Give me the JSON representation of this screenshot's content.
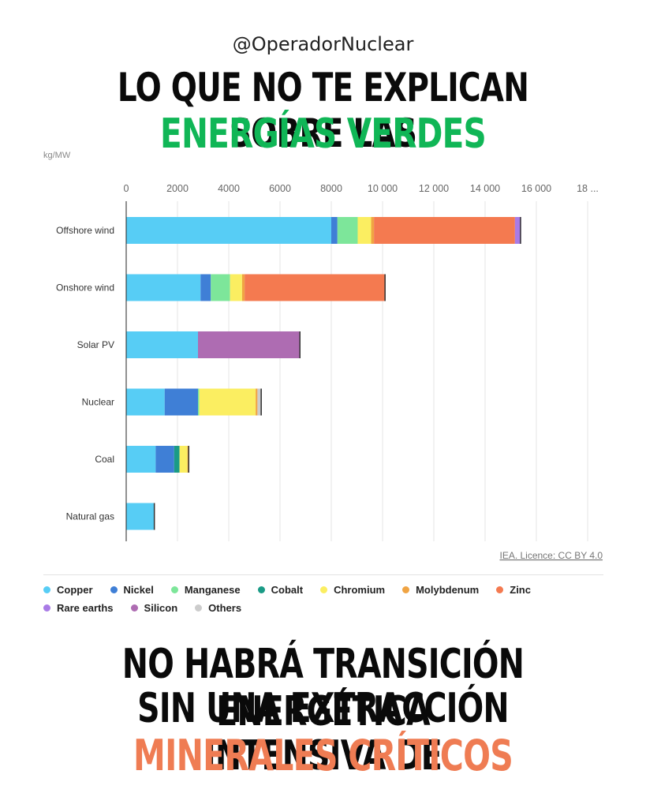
{
  "header": {
    "handle": "@OperadorNuclear",
    "title_line1": "LO QUE NO TE EXPLICAN SOBRE LAS",
    "title_line2": "ENERGÍAS VERDES"
  },
  "footer": {
    "line1": "NO HABRÁ TRANSICIÓN ENERGÉTICA",
    "line2": "SIN UNA EXTRACCIÓN INTENSIVA DE",
    "line3": "MINERALES CRÍTICOS"
  },
  "colors": {
    "headline_green": "#10b656",
    "headline_orange": "#ef7c53"
  },
  "chart_data": {
    "type": "bar",
    "orientation": "horizontal",
    "stacked": true,
    "unit_label": "kg/MW",
    "source": "IEA. Licence: CC BY 4.0",
    "xlim": [
      0,
      18000
    ],
    "x_ticks": [
      "0",
      "2000",
      "4000",
      "6000",
      "8000",
      "10 000",
      "12 000",
      "14 000",
      "16 000",
      "18 ..."
    ],
    "x_tick_values": [
      0,
      2000,
      4000,
      6000,
      8000,
      10000,
      12000,
      14000,
      16000,
      18000
    ],
    "grid": true,
    "legend_position": "bottom",
    "categories": [
      "Offshore wind",
      "Onshore wind",
      "Solar PV",
      "Nuclear",
      "Coal",
      "Natural gas"
    ],
    "series": [
      {
        "name": "Copper",
        "color": "#57cdf5",
        "values": [
          8000,
          2900,
          2800,
          1500,
          1150,
          1100
        ]
      },
      {
        "name": "Nickel",
        "color": "#3f7fd6",
        "values": [
          240,
          400,
          0,
          1300,
          720,
          0
        ]
      },
      {
        "name": "Manganese",
        "color": "#7de69a",
        "values": [
          790,
          750,
          0,
          50,
          0,
          0
        ]
      },
      {
        "name": "Cobalt",
        "color": "#1a9b86",
        "values": [
          0,
          0,
          0,
          0,
          210,
          0
        ]
      },
      {
        "name": "Chromium",
        "color": "#fbee61",
        "values": [
          525,
          470,
          0,
          2200,
          310,
          0
        ]
      },
      {
        "name": "Molybdenum",
        "color": "#f0a443",
        "values": [
          110,
          100,
          0,
          70,
          60,
          0
        ]
      },
      {
        "name": "Zinc",
        "color": "#f47a50",
        "values": [
          5500,
          5500,
          0,
          0,
          0,
          0
        ]
      },
      {
        "name": "Rare earths",
        "color": "#a97be6",
        "values": [
          240,
          0,
          0,
          0,
          0,
          0
        ]
      },
      {
        "name": "Silicon",
        "color": "#ae6cb2",
        "values": [
          0,
          0,
          4000,
          0,
          0,
          0
        ]
      },
      {
        "name": "Others",
        "color": "#cccccc",
        "values": [
          0,
          0,
          0,
          170,
          10,
          20
        ]
      }
    ]
  }
}
